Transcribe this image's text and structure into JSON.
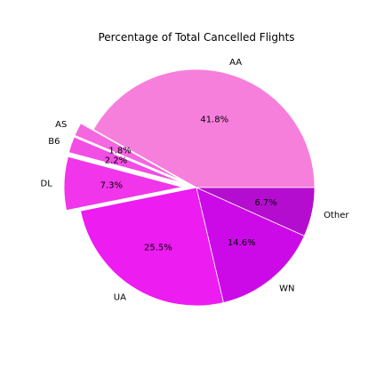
{
  "chart_data": {
    "type": "pie",
    "title": "Percentage of Total Cancelled Flights",
    "slices": [
      {
        "label": "AA",
        "value": 41.8,
        "pct_label": "41.8%",
        "color": "#f77fdc",
        "explode": 0.0
      },
      {
        "label": "AS",
        "value": 1.8,
        "pct_label": "1.8%",
        "color": "#f566e1",
        "explode": 0.12
      },
      {
        "label": "B6",
        "value": 2.2,
        "pct_label": "2.2%",
        "color": "#f24de5",
        "explode": 0.12
      },
      {
        "label": "DL",
        "value": 7.3,
        "pct_label": "7.3%",
        "color": "#f035ea",
        "explode": 0.12
      },
      {
        "label": "UA",
        "value": 25.5,
        "pct_label": "25.5%",
        "color": "#ed1cf1",
        "explode": 0.0
      },
      {
        "label": "WN",
        "value": 14.6,
        "pct_label": "14.6%",
        "color": "#cc0ae8",
        "explode": 0.0
      },
      {
        "label": "Other",
        "value": 6.7,
        "pct_label": "6.7%",
        "color": "#b50dcf",
        "explode": 0.0
      }
    ],
    "start_angle_deg": 0,
    "direction": "counterclockwise",
    "legend": "none"
  }
}
